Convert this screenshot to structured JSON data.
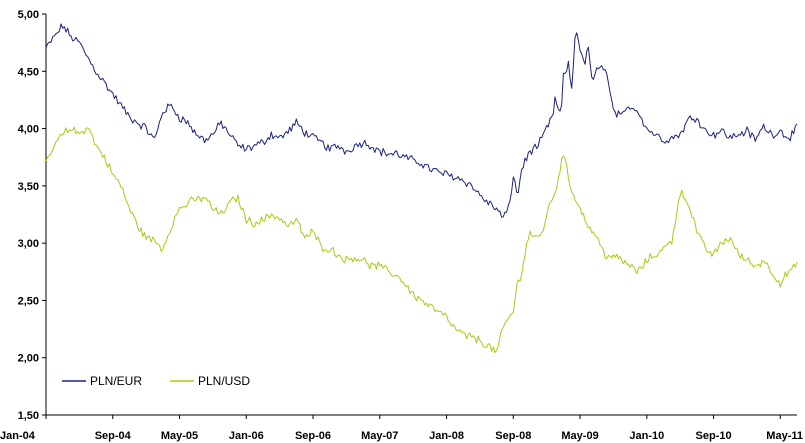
{
  "chart_data": {
    "type": "line",
    "title": "",
    "xlabel": "",
    "ylabel": "",
    "ylim": [
      1.5,
      5.0
    ],
    "y_ticks": [
      "1,50",
      "2,00",
      "2,50",
      "3,00",
      "3,50",
      "4,00",
      "4,50",
      "5,00"
    ],
    "y_tick_values": [
      1.5,
      2.0,
      2.5,
      3.0,
      3.5,
      4.0,
      4.5,
      5.0
    ],
    "x_ticks": [
      "Jan-04",
      "Sep-04",
      "May-05",
      "Jan-06",
      "Sep-06",
      "May-07",
      "Jan-08",
      "Sep-08",
      "May-09",
      "Jan-10",
      "Sep-10",
      "May-11"
    ],
    "x_tick_months": [
      0,
      8,
      16,
      24,
      32,
      40,
      48,
      56,
      64,
      72,
      80,
      88
    ],
    "x_range_months": [
      0,
      90
    ],
    "grid": false,
    "legend_position": "bottom-left",
    "series": [
      {
        "name": "PLN/EUR",
        "color": "#1a237e",
        "months": [
          0,
          1,
          2,
          3,
          4,
          5,
          6,
          7,
          8,
          9,
          10,
          11,
          12,
          13,
          14,
          15,
          16,
          17,
          18,
          19,
          20,
          21,
          22,
          23,
          24,
          25,
          26,
          27,
          28,
          29,
          30,
          31,
          32,
          33,
          34,
          35,
          36,
          37,
          38,
          39,
          40,
          41,
          42,
          43,
          44,
          45,
          46,
          47,
          48,
          49,
          50,
          51,
          52,
          53,
          54,
          54.7,
          55.5,
          56,
          56.5,
          57,
          58,
          59,
          60,
          60.7,
          61,
          61.7,
          62,
          62.6,
          63,
          63.5,
          64,
          64.5,
          65,
          65.5,
          66,
          67,
          68,
          69,
          70,
          71,
          72,
          73,
          74,
          75,
          76,
          77,
          78,
          79,
          80,
          81,
          82,
          83,
          84,
          85,
          86,
          87,
          88,
          89,
          90
        ],
        "values": [
          4.7,
          4.8,
          4.9,
          4.8,
          4.75,
          4.62,
          4.5,
          4.4,
          4.3,
          4.2,
          4.1,
          4.05,
          4.0,
          3.9,
          4.15,
          4.2,
          4.1,
          4.05,
          3.95,
          3.9,
          3.95,
          4.05,
          3.95,
          3.85,
          3.82,
          3.85,
          3.88,
          3.95,
          3.92,
          3.97,
          4.05,
          3.97,
          3.92,
          3.88,
          3.82,
          3.85,
          3.8,
          3.85,
          3.88,
          3.85,
          3.8,
          3.78,
          3.78,
          3.75,
          3.72,
          3.7,
          3.65,
          3.62,
          3.6,
          3.58,
          3.55,
          3.5,
          3.42,
          3.35,
          3.3,
          3.22,
          3.3,
          3.6,
          3.4,
          3.65,
          3.8,
          3.85,
          4.0,
          4.1,
          4.25,
          4.1,
          4.45,
          4.55,
          4.35,
          4.9,
          4.7,
          4.55,
          4.7,
          4.4,
          4.5,
          4.55,
          4.15,
          4.1,
          4.2,
          4.15,
          4.0,
          3.95,
          3.9,
          3.92,
          3.95,
          4.08,
          4.1,
          3.98,
          3.95,
          3.98,
          3.92,
          3.95,
          3.98,
          3.9,
          4.02,
          3.95,
          3.98,
          3.92,
          4.0
        ]
      },
      {
        "name": "PLN/USD",
        "color": "#a6cc14",
        "months": [
          0,
          1,
          2,
          3,
          4,
          5,
          6,
          7,
          8,
          9,
          10,
          11,
          12,
          13,
          14,
          15,
          16,
          17,
          18,
          19,
          20,
          21,
          22,
          23,
          24,
          25,
          26,
          27,
          28,
          29,
          30,
          31,
          32,
          33,
          34,
          35,
          36,
          37,
          38,
          39,
          40,
          41,
          42,
          43,
          44,
          45,
          46,
          47,
          48,
          49,
          50,
          51,
          52,
          53,
          54,
          55,
          56,
          56.5,
          57,
          57.5,
          58,
          58.5,
          59,
          59.5,
          60,
          60.5,
          61,
          61.5,
          62,
          62.5,
          63,
          63.5,
          64,
          65,
          66,
          67,
          68,
          69,
          70,
          71,
          72,
          73,
          74,
          75,
          76,
          77,
          78,
          79,
          80,
          81,
          82,
          83,
          84,
          85,
          86,
          87,
          88,
          89,
          90
        ],
        "values": [
          3.7,
          3.85,
          3.95,
          4.0,
          3.95,
          4.02,
          3.85,
          3.75,
          3.6,
          3.5,
          3.3,
          3.15,
          3.05,
          3.02,
          2.95,
          3.15,
          3.3,
          3.35,
          3.38,
          3.4,
          3.3,
          3.25,
          3.35,
          3.4,
          3.2,
          3.18,
          3.2,
          3.25,
          3.22,
          3.15,
          3.2,
          3.05,
          3.1,
          2.97,
          2.95,
          2.9,
          2.85,
          2.88,
          2.85,
          2.8,
          2.8,
          2.75,
          2.72,
          2.65,
          2.55,
          2.5,
          2.45,
          2.4,
          2.35,
          2.25,
          2.2,
          2.18,
          2.15,
          2.1,
          2.05,
          2.3,
          2.4,
          2.65,
          2.75,
          2.95,
          3.1,
          3.05,
          3.05,
          3.1,
          3.25,
          3.35,
          3.45,
          3.6,
          3.8,
          3.6,
          3.45,
          3.4,
          3.3,
          3.15,
          3.05,
          2.9,
          2.88,
          2.85,
          2.8,
          2.75,
          2.85,
          2.9,
          2.95,
          3.02,
          3.45,
          3.35,
          3.1,
          2.95,
          2.9,
          3.0,
          3.05,
          2.9,
          2.85,
          2.8,
          2.85,
          2.75,
          2.65,
          2.75,
          2.8
        ]
      }
    ]
  }
}
